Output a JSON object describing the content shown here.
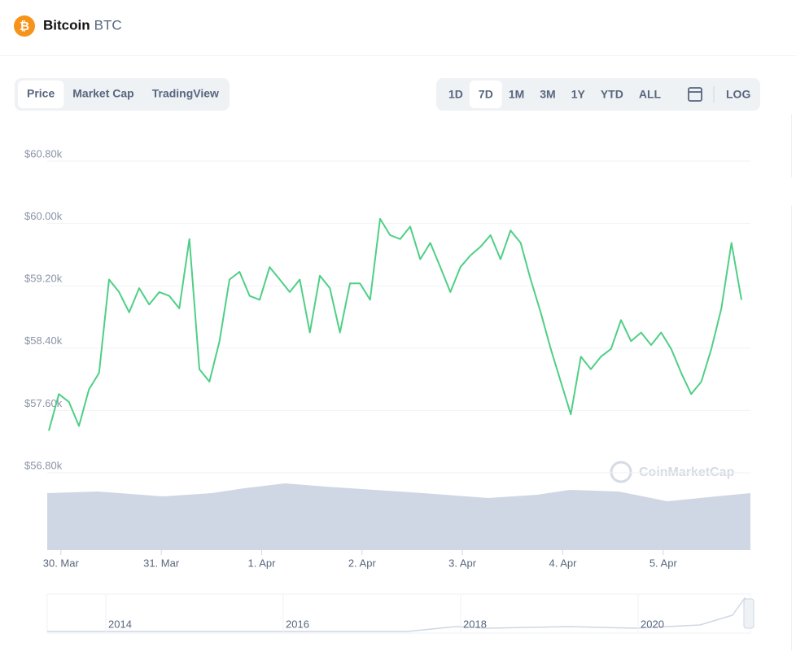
{
  "header": {
    "name": "Bitcoin",
    "symbol": "BTC"
  },
  "tabs": [
    "Price",
    "Market Cap",
    "TradingView"
  ],
  "ranges": [
    "1D",
    "7D",
    "1M",
    "3M",
    "1Y",
    "YTD",
    "ALL"
  ],
  "log_button": "LOG",
  "watermark": "CoinMarketCap",
  "navigator": {
    "labels": [
      "2014",
      "2016",
      "2018",
      "2020"
    ]
  },
  "chart_data": {
    "type": "line",
    "color": "#4fcf86",
    "grid": true,
    "values": [
      57340,
      57810,
      57710,
      57400,
      57870,
      58080,
      59280,
      59120,
      58860,
      59170,
      58960,
      59120,
      59070,
      58910,
      59800,
      58130,
      57970,
      58490,
      59280,
      59380,
      59070,
      59020,
      59440,
      59280,
      59120,
      59280,
      58600,
      59330,
      59170,
      58600,
      59230,
      59230,
      59020,
      60060,
      59850,
      59800,
      59960,
      59540,
      59750,
      59440,
      59120,
      59440,
      59590,
      59700,
      59850,
      59540,
      59910,
      59750,
      59280,
      58860,
      58390,
      57970,
      57550,
      58290,
      58130,
      58290,
      58390,
      58760,
      58490,
      58600,
      58440,
      58600,
      58390,
      58080,
      57810,
      57970,
      58390,
      58910,
      59750,
      59020
    ],
    "xlim": [
      0,
      69
    ],
    "xticks": [
      {
        "value": 1.2,
        "label": "30. Mar"
      },
      {
        "value": 11.2,
        "label": "31. Mar"
      },
      {
        "value": 21.2,
        "label": "1. Apr"
      },
      {
        "value": 31.2,
        "label": "2. Apr"
      },
      {
        "value": 41.2,
        "label": "3. Apr"
      },
      {
        "value": 51.2,
        "label": "4. Apr"
      },
      {
        "value": 61.2,
        "label": "5. Apr"
      }
    ],
    "ylim": [
      56800,
      60800
    ],
    "yticks": [
      {
        "value": 56800,
        "label": "$56.80k"
      },
      {
        "value": 57600,
        "label": "$57.60k"
      },
      {
        "value": 58400,
        "label": "$58.40k"
      },
      {
        "value": 59200,
        "label": "$59.20k"
      },
      {
        "value": 60000,
        "label": "$60.00k"
      },
      {
        "value": 60800,
        "label": "$60.80k"
      }
    ]
  }
}
